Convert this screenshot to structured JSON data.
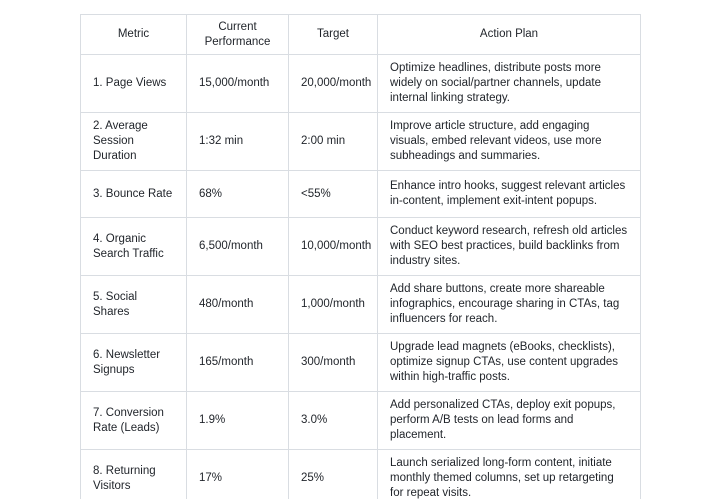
{
  "colors": {
    "background": "#ffffff",
    "border": "#d9dde2",
    "text": "#1f2329"
  },
  "table": {
    "headers": {
      "metric": "Metric",
      "current": "Current Performance",
      "target": "Target",
      "action": "Action Plan"
    },
    "rows": [
      {
        "metric": "1. Page Views",
        "current": "15,000/month",
        "target": "20,000/month",
        "action": "Optimize headlines, distribute posts more widely on social/partner channels, update internal linking strategy."
      },
      {
        "metric": "2. Average Session Duration",
        "current": "1:32 min",
        "target": "2:00 min",
        "action": "Improve article structure, add engaging visuals, embed relevant videos, use more subheadings and summaries."
      },
      {
        "metric": "3. Bounce Rate",
        "current": "68%",
        "target": "<55%",
        "action": "Enhance intro hooks, suggest relevant articles in-content, implement exit-intent popups."
      },
      {
        "metric": "4. Organic Search Traffic",
        "current": "6,500/month",
        "target": "10,000/month",
        "action": "Conduct keyword research, refresh old articles with SEO best practices, build backlinks from industry sites."
      },
      {
        "metric": "5. Social Shares",
        "current": "480/month",
        "target": "1,000/month",
        "action": "Add share buttons, create more shareable infographics, encourage sharing in CTAs, tag influencers for reach."
      },
      {
        "metric": "6. Newsletter Signups",
        "current": "165/month",
        "target": "300/month",
        "action": "Upgrade lead magnets (eBooks, checklists), optimize signup CTAs, use content upgrades within high-traffic posts."
      },
      {
        "metric": "7. Conversion Rate (Leads)",
        "current": "1.9%",
        "target": "3.0%",
        "action": "Add personalized CTAs, deploy exit popups, perform A/B tests on lead forms and placement."
      },
      {
        "metric": "8. Returning Visitors",
        "current": "17%",
        "target": "25%",
        "action": "Launch serialized long-form content, initiate monthly themed columns, set up retargeting for repeat visits."
      }
    ]
  }
}
